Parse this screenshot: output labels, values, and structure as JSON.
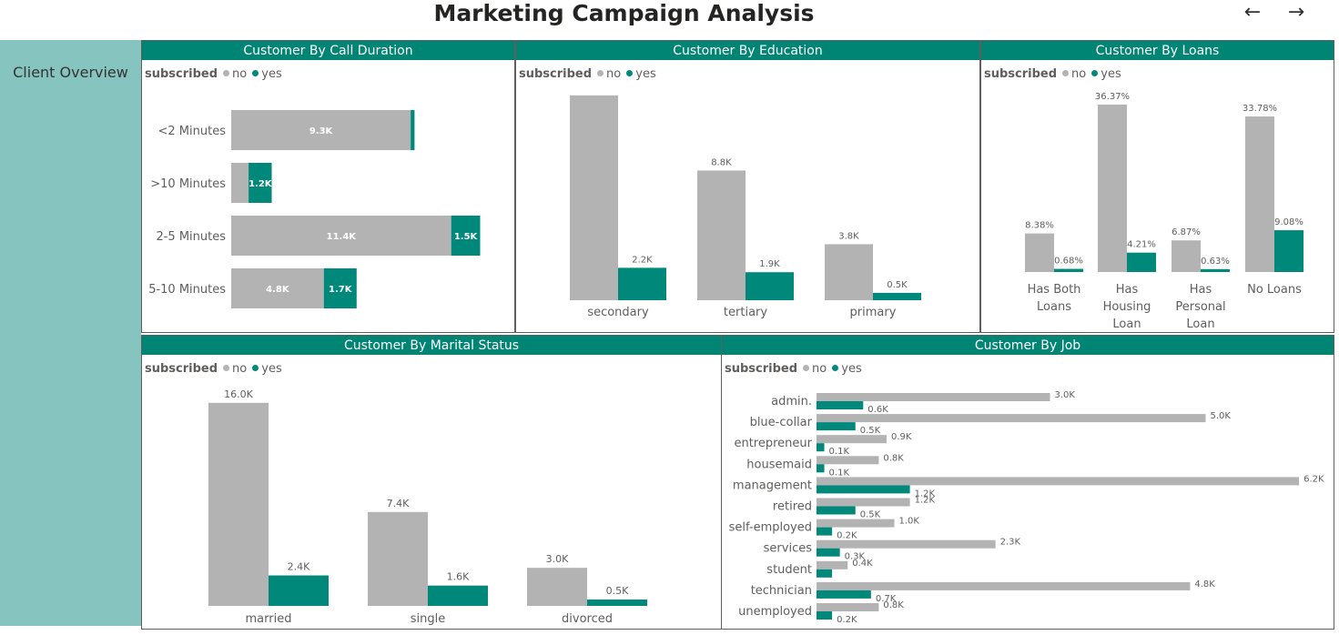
{
  "header": {
    "title": "Marketing Campaign Analysis",
    "back_icon": "←",
    "forward_icon": "→"
  },
  "sidebar": {
    "label": "Client Overview"
  },
  "colors": {
    "no": "#b3b3b3",
    "yes": "#00897b",
    "header": "#008575",
    "sidebar": "#86c5bf"
  },
  "legend": {
    "title": "subscribed",
    "no": "no",
    "yes": "yes"
  },
  "chart_data": [
    {
      "id": "call_duration",
      "title": "Customer By Call Duration",
      "type": "bar",
      "orientation": "horizontal",
      "stacked": true,
      "categories": [
        "<2 Minutes",
        ">10 Minutes",
        "2-5 Minutes",
        "5-10 Minutes"
      ],
      "series": [
        {
          "name": "no",
          "values": [
            9.3,
            0.9,
            11.4,
            4.8
          ],
          "labels": [
            "9.3K",
            "",
            "11.4K",
            "4.8K"
          ]
        },
        {
          "name": "yes",
          "values": [
            0.2,
            1.2,
            1.5,
            1.7
          ],
          "labels": [
            "",
            "1.2K",
            "1.5K",
            "1.7K"
          ]
        }
      ]
    },
    {
      "id": "education",
      "title": "Customer By Education",
      "type": "bar",
      "orientation": "vertical",
      "categories": [
        "secondary",
        "tertiary",
        "primary"
      ],
      "series": [
        {
          "name": "no",
          "values": [
            13.9,
            8.8,
            3.8
          ],
          "labels": [
            "13.9K",
            "8.8K",
            "3.8K"
          ]
        },
        {
          "name": "yes",
          "values": [
            2.2,
            1.9,
            0.5
          ],
          "labels": [
            "2.2K",
            "1.9K",
            "0.5K"
          ]
        }
      ]
    },
    {
      "id": "loans",
      "title": "Customer By Loans",
      "type": "bar",
      "orientation": "vertical",
      "categories": [
        "Has Both Loans",
        "Has Housing Loan",
        "Has Personal Loan",
        "No Loans"
      ],
      "category_lines": [
        [
          "Has Both",
          "Loans"
        ],
        [
          "Has",
          "Housing",
          "Loan"
        ],
        [
          "Has",
          "Personal",
          "Loan"
        ],
        [
          "No Loans"
        ]
      ],
      "series": [
        {
          "name": "no",
          "values": [
            8.38,
            36.37,
            6.87,
            33.78
          ],
          "labels": [
            "8.38%",
            "36.37%",
            "6.87%",
            "33.78%"
          ]
        },
        {
          "name": "yes",
          "values": [
            0.68,
            4.21,
            0.63,
            9.08
          ],
          "labels": [
            "0.68%",
            "4.21%",
            "0.63%",
            "9.08%"
          ]
        }
      ]
    },
    {
      "id": "marital",
      "title": "Customer By Marital Status",
      "type": "bar",
      "orientation": "vertical",
      "categories": [
        "married",
        "single",
        "divorced"
      ],
      "series": [
        {
          "name": "no",
          "values": [
            16.0,
            7.4,
            3.0
          ],
          "labels": [
            "16.0K",
            "7.4K",
            "3.0K"
          ]
        },
        {
          "name": "yes",
          "values": [
            2.4,
            1.6,
            0.5
          ],
          "labels": [
            "2.4K",
            "1.6K",
            "0.5K"
          ]
        }
      ]
    },
    {
      "id": "job",
      "title": "Customer By Job",
      "type": "bar",
      "orientation": "horizontal",
      "categories": [
        "admin.",
        "blue-collar",
        "entrepreneur",
        "housemaid",
        "management",
        "retired",
        "self-employed",
        "services",
        "student",
        "technician",
        "unemployed"
      ],
      "series": [
        {
          "name": "no",
          "values": [
            3.0,
            5.0,
            0.9,
            0.8,
            6.2,
            1.2,
            1.0,
            2.3,
            0.4,
            4.8,
            0.8
          ],
          "labels": [
            "3.0K",
            "5.0K",
            "0.9K",
            "0.8K",
            "6.2K",
            "1.2K",
            "1.0K",
            "2.3K",
            "0.4K",
            "4.8K",
            "0.8K"
          ]
        },
        {
          "name": "yes",
          "values": [
            0.6,
            0.5,
            0.1,
            0.1,
            1.2,
            0.5,
            0.2,
            0.3,
            0.2,
            0.7,
            0.2
          ],
          "labels": [
            "0.6K",
            "0.5K",
            "0.1K",
            "0.1K",
            "1.2K",
            "0.5K",
            "0.2K",
            "0.3K",
            "",
            "0.7K",
            "0.2K"
          ]
        }
      ]
    }
  ]
}
